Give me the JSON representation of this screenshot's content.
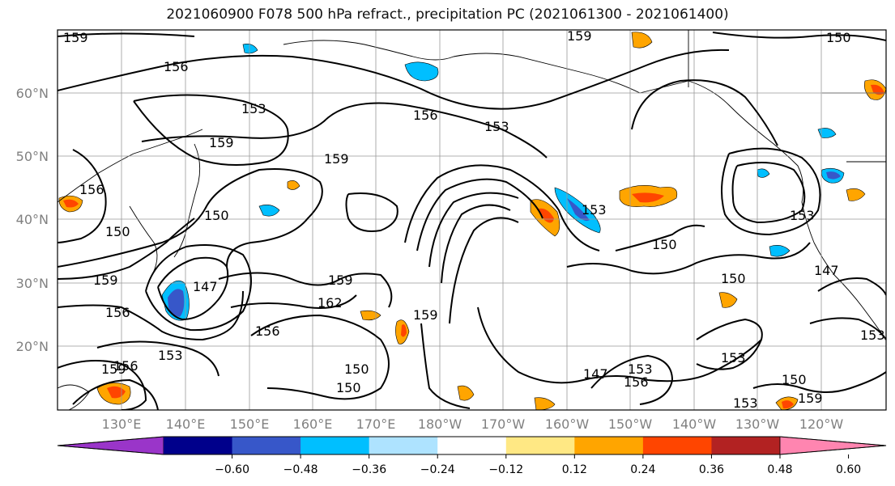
{
  "title": "2021060900 F078 500 hPa refract., precipitation PC (2021061300 - 2021061400)",
  "lon_ticks": [
    "130°E",
    "140°E",
    "150°E",
    "160°E",
    "170°E",
    "180°W",
    "170°W",
    "160°W",
    "150°W",
    "140°W",
    "130°W",
    "120°W"
  ],
  "lat_ticks": [
    "60°N",
    "50°N",
    "40°N",
    "30°N",
    "20°N"
  ],
  "contour_labels": [
    "159",
    "156",
    "153",
    "159",
    "156",
    "153",
    "159",
    "156",
    "150",
    "150",
    "159",
    "147",
    "156",
    "159",
    "162",
    "159",
    "156",
    "156",
    "153",
    "159",
    "150",
    "150",
    "159",
    "153",
    "150",
    "150",
    "147",
    "153",
    "156",
    "153",
    "153",
    "147",
    "150",
    "159",
    "153",
    "153",
    "150"
  ],
  "colorbar": {
    "ticks": [
      "−0.60",
      "−0.48",
      "−0.36",
      "−0.24",
      "−0.12",
      "0.12",
      "0.24",
      "0.36",
      "0.48",
      "0.60"
    ],
    "colors": [
      "#9a35c9",
      "#00008b",
      "#3757c9",
      "#00bfff",
      "#aee3ff",
      "#ffffff",
      "#ffe884",
      "#ffa500",
      "#ff4500",
      "#b22222",
      "#ff85b0"
    ]
  }
}
